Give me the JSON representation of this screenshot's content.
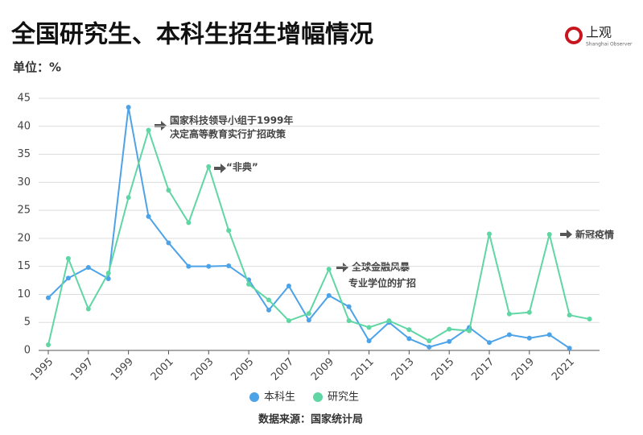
{
  "logo": {
    "name": "上观",
    "subtitle": "Shanghai Observer"
  },
  "chart_data": {
    "type": "line",
    "title": "全国研究生、本科生招生增幅情况",
    "y_label": "单位：%",
    "source": "数据来源：国家统计局",
    "x": [
      1995,
      1996,
      1997,
      1998,
      1999,
      2000,
      2001,
      2002,
      2003,
      2004,
      2005,
      2006,
      2007,
      2008,
      2009,
      2010,
      2011,
      2012,
      2013,
      2014,
      2015,
      2016,
      2017,
      2018,
      2019,
      2020,
      2021,
      2022
    ],
    "series": [
      {
        "name": "本科生",
        "color": "#4da3e8",
        "values": [
          9.4,
          12.9,
          14.8,
          12.8,
          43.4,
          23.9,
          19.2,
          15.0,
          15.0,
          15.1,
          12.6,
          7.2,
          11.5,
          5.4,
          9.8,
          7.8,
          1.7,
          5.0,
          2.1,
          0.6,
          1.6,
          4.1,
          1.4,
          2.8,
          2.2,
          2.8,
          0.4,
          null
        ]
      },
      {
        "name": "研究生",
        "color": "#5fd6a4",
        "values": [
          1.0,
          16.4,
          7.4,
          13.8,
          27.3,
          39.3,
          28.6,
          22.8,
          32.8,
          21.4,
          11.8,
          9.0,
          5.3,
          6.6,
          14.5,
          5.3,
          4.1,
          5.3,
          3.7,
          1.7,
          3.8,
          3.5,
          20.8,
          6.5,
          6.8,
          20.7,
          6.3,
          5.6
        ]
      }
    ],
    "xlim": [
      1995,
      2022.5
    ],
    "xticks": [
      1995,
      1997,
      1999,
      2001,
      2003,
      2005,
      2007,
      2009,
      2011,
      2013,
      2015,
      2017,
      2019,
      2021
    ],
    "ylim": [
      0,
      45
    ],
    "yticks": [
      0,
      5,
      10,
      15,
      20,
      25,
      30,
      35,
      40,
      45
    ],
    "grid": true,
    "annotations": [
      "国家科技领导小组于1999年",
      "决定高等教育实行扩招政策",
      "“非典”",
      "全球金融风暴",
      "专业学位的扩招",
      "新冠疫情"
    ]
  }
}
